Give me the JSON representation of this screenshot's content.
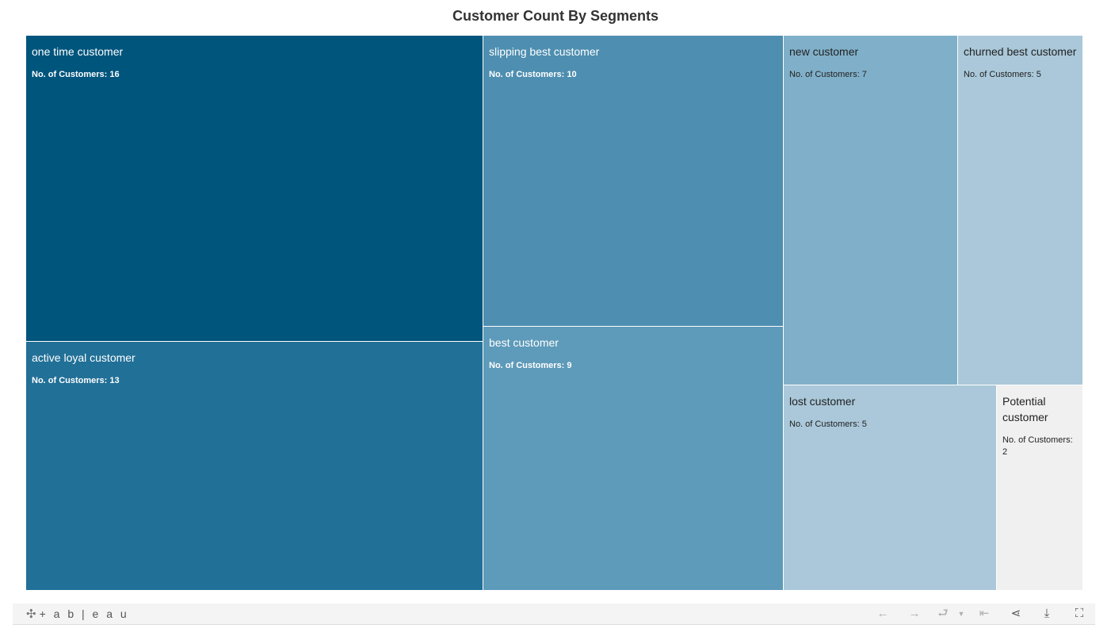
{
  "chart_data": {
    "type": "treemap",
    "title": "Customer Count By Segments",
    "measure_label": "No. of Customers",
    "segments": [
      {
        "name": "one time customer",
        "value": 16,
        "color": "#00557d"
      },
      {
        "name": "active loyal customer",
        "value": 13,
        "color": "#217097"
      },
      {
        "name": "slipping best customer",
        "value": 10,
        "color": "#4e8eb0"
      },
      {
        "name": "best customer",
        "value": 9,
        "color": "#5e9ab9"
      },
      {
        "name": "new customer",
        "value": 7,
        "color": "#80b0c9"
      },
      {
        "name": "churned best customer",
        "value": 5,
        "color": "#aac8d9"
      },
      {
        "name": "lost customer",
        "value": 5,
        "color": "#aac8d9"
      },
      {
        "name": "Potential customer",
        "value": 2,
        "color": "#f0f0f0"
      }
    ]
  },
  "toolbar": {
    "logo_text": "+ a b | e a u",
    "icons": [
      "undo-icon",
      "redo-icon",
      "revert-icon",
      "reset-icon",
      "share-icon",
      "download-icon",
      "fullscreen-icon"
    ]
  }
}
